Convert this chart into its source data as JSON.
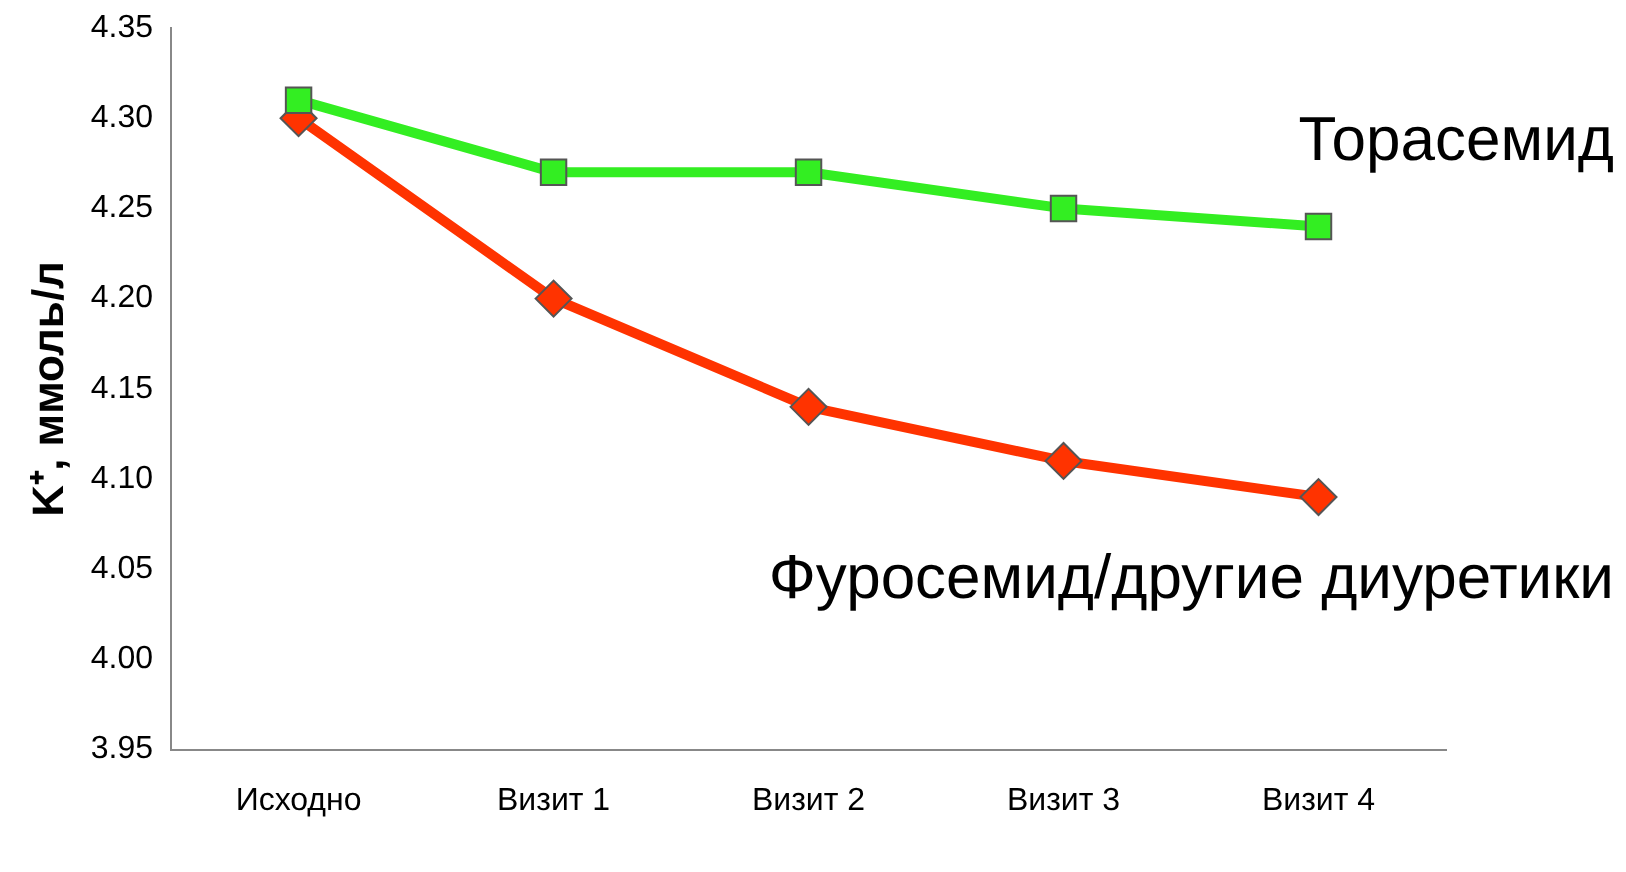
{
  "chart_data": {
    "type": "line",
    "ylabel": "K⁺, ммоль/л",
    "categories": [
      "Исходно",
      "Визит 1",
      "Визит 2",
      "Визит 3",
      "Визит 4"
    ],
    "series": [
      {
        "name": "Торасемид",
        "color": "#33ee22",
        "marker": "square",
        "values": [
          4.31,
          4.27,
          4.27,
          4.25,
          4.24
        ]
      },
      {
        "name": "Фуросемид/другие диуретики",
        "color": "#ff3300",
        "marker": "diamond",
        "values": [
          4.3,
          4.2,
          4.14,
          4.11,
          4.09
        ]
      }
    ],
    "ylim": [
      3.95,
      4.35
    ],
    "yticks": [
      {
        "value": 3.95,
        "label": "3.95"
      },
      {
        "value": 4.0,
        "label": "4.00"
      },
      {
        "value": 4.05,
        "label": "4.05"
      },
      {
        "value": 4.1,
        "label": "4.10"
      },
      {
        "value": 4.15,
        "label": "4.15"
      },
      {
        "value": 4.2,
        "label": "4.20"
      },
      {
        "value": 4.25,
        "label": "4.25"
      },
      {
        "value": 4.3,
        "label": "4.30"
      },
      {
        "value": 4.35,
        "label": "4.35"
      }
    ],
    "grid": false,
    "legend": false,
    "line_style": "solid"
  }
}
